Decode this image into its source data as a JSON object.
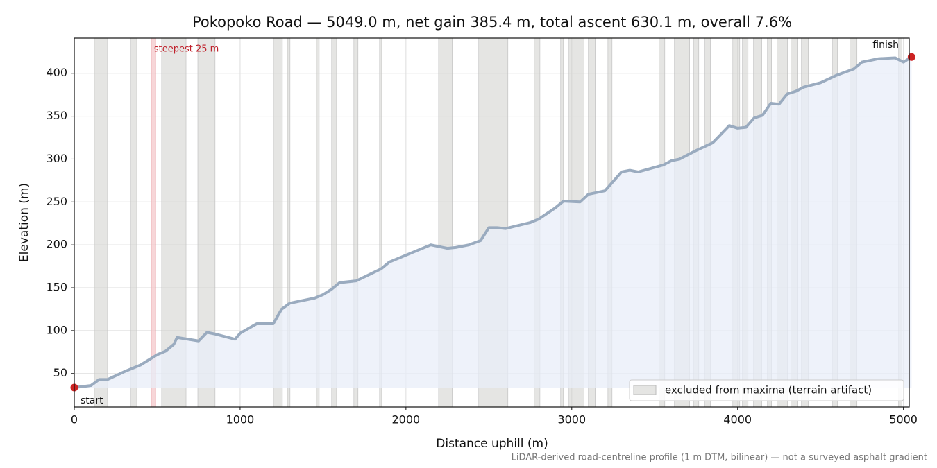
{
  "chart_data": {
    "type": "line",
    "title": "Pokopoko Road — 5049.0 m, net gain 385.4 m, total ascent 630.1 m, overall 7.6%",
    "x_label": "Distance uphill (m)",
    "y_label": "Elevation (m)",
    "footnote": "LiDAR-derived road-centreline profile (1 m DTM, bilinear) — not a surveyed asphalt gradient",
    "start_label": "start",
    "finish_label": "finish",
    "x": [
      0,
      100,
      150,
      200,
      300,
      400,
      500,
      550,
      600,
      620,
      750,
      800,
      850,
      970,
      1000,
      1100,
      1200,
      1250,
      1300,
      1450,
      1500,
      1550,
      1600,
      1700,
      1850,
      1900,
      2050,
      2150,
      2250,
      2300,
      2380,
      2450,
      2500,
      2550,
      2600,
      2750,
      2800,
      2900,
      2950,
      3050,
      3100,
      3200,
      3300,
      3350,
      3400,
      3550,
      3600,
      3650,
      3750,
      3850,
      3950,
      4000,
      4050,
      4100,
      4150,
      4200,
      4250,
      4300,
      4350,
      4400,
      4500,
      4600,
      4700,
      4750,
      4850,
      4950,
      5000,
      5049
    ],
    "values": [
      33.6,
      36,
      43,
      43,
      52,
      60,
      72,
      76,
      84,
      92,
      88,
      98,
      96,
      90,
      97,
      108,
      108,
      125,
      132,
      138,
      142,
      148,
      156,
      158,
      172,
      180,
      192,
      200,
      196,
      197,
      200,
      205,
      220,
      220,
      219,
      226,
      230,
      243,
      251,
      250,
      259,
      263,
      285,
      287,
      285,
      293,
      298,
      300,
      310,
      319,
      339,
      336,
      337,
      348,
      351,
      365,
      364,
      376,
      379,
      384,
      389,
      398,
      405,
      413,
      417,
      418,
      413,
      419
    ],
    "color": "#9aabbf",
    "fill_color": "#e8eef8",
    "endpoint_color": "#cc2222",
    "excluded_label": "excluded from maxima (terrain artifact)",
    "excluded_color": "#d0d0cc",
    "excluded": [
      [
        121,
        201
      ],
      [
        339,
        377
      ],
      [
        527,
        674
      ],
      [
        745,
        849
      ],
      [
        1201,
        1255
      ],
      [
        1285,
        1301
      ],
      [
        1460,
        1477
      ],
      [
        1552,
        1582
      ],
      [
        1686,
        1711
      ],
      [
        1841,
        1854
      ],
      [
        2197,
        2280
      ],
      [
        2439,
        2615
      ],
      [
        2774,
        2808
      ],
      [
        2933,
        2950
      ],
      [
        2983,
        3075
      ],
      [
        3100,
        3142
      ],
      [
        3218,
        3243
      ],
      [
        3527,
        3561
      ],
      [
        3619,
        3711
      ],
      [
        3736,
        3766
      ],
      [
        3803,
        3837
      ],
      [
        3971,
        4013
      ],
      [
        4029,
        4063
      ],
      [
        4096,
        4146
      ],
      [
        4180,
        4205
      ],
      [
        4238,
        4301
      ],
      [
        4322,
        4364
      ],
      [
        4385,
        4427
      ],
      [
        4573,
        4603
      ],
      [
        4678,
        4720
      ],
      [
        4971,
        4992
      ]
    ],
    "steepest": [
      464,
      490
    ],
    "steepest_label": "steepest 25 m",
    "steepest_color": "#f4c4c8",
    "xlim": [
      0,
      5035
    ],
    "ylim": [
      11,
      441
    ],
    "xticks": [
      0,
      1000,
      2000,
      3000,
      4000,
      5000
    ],
    "yticks": [
      50,
      100,
      150,
      200,
      250,
      300,
      350,
      400
    ],
    "grid": true,
    "legend_position": "lower right"
  }
}
